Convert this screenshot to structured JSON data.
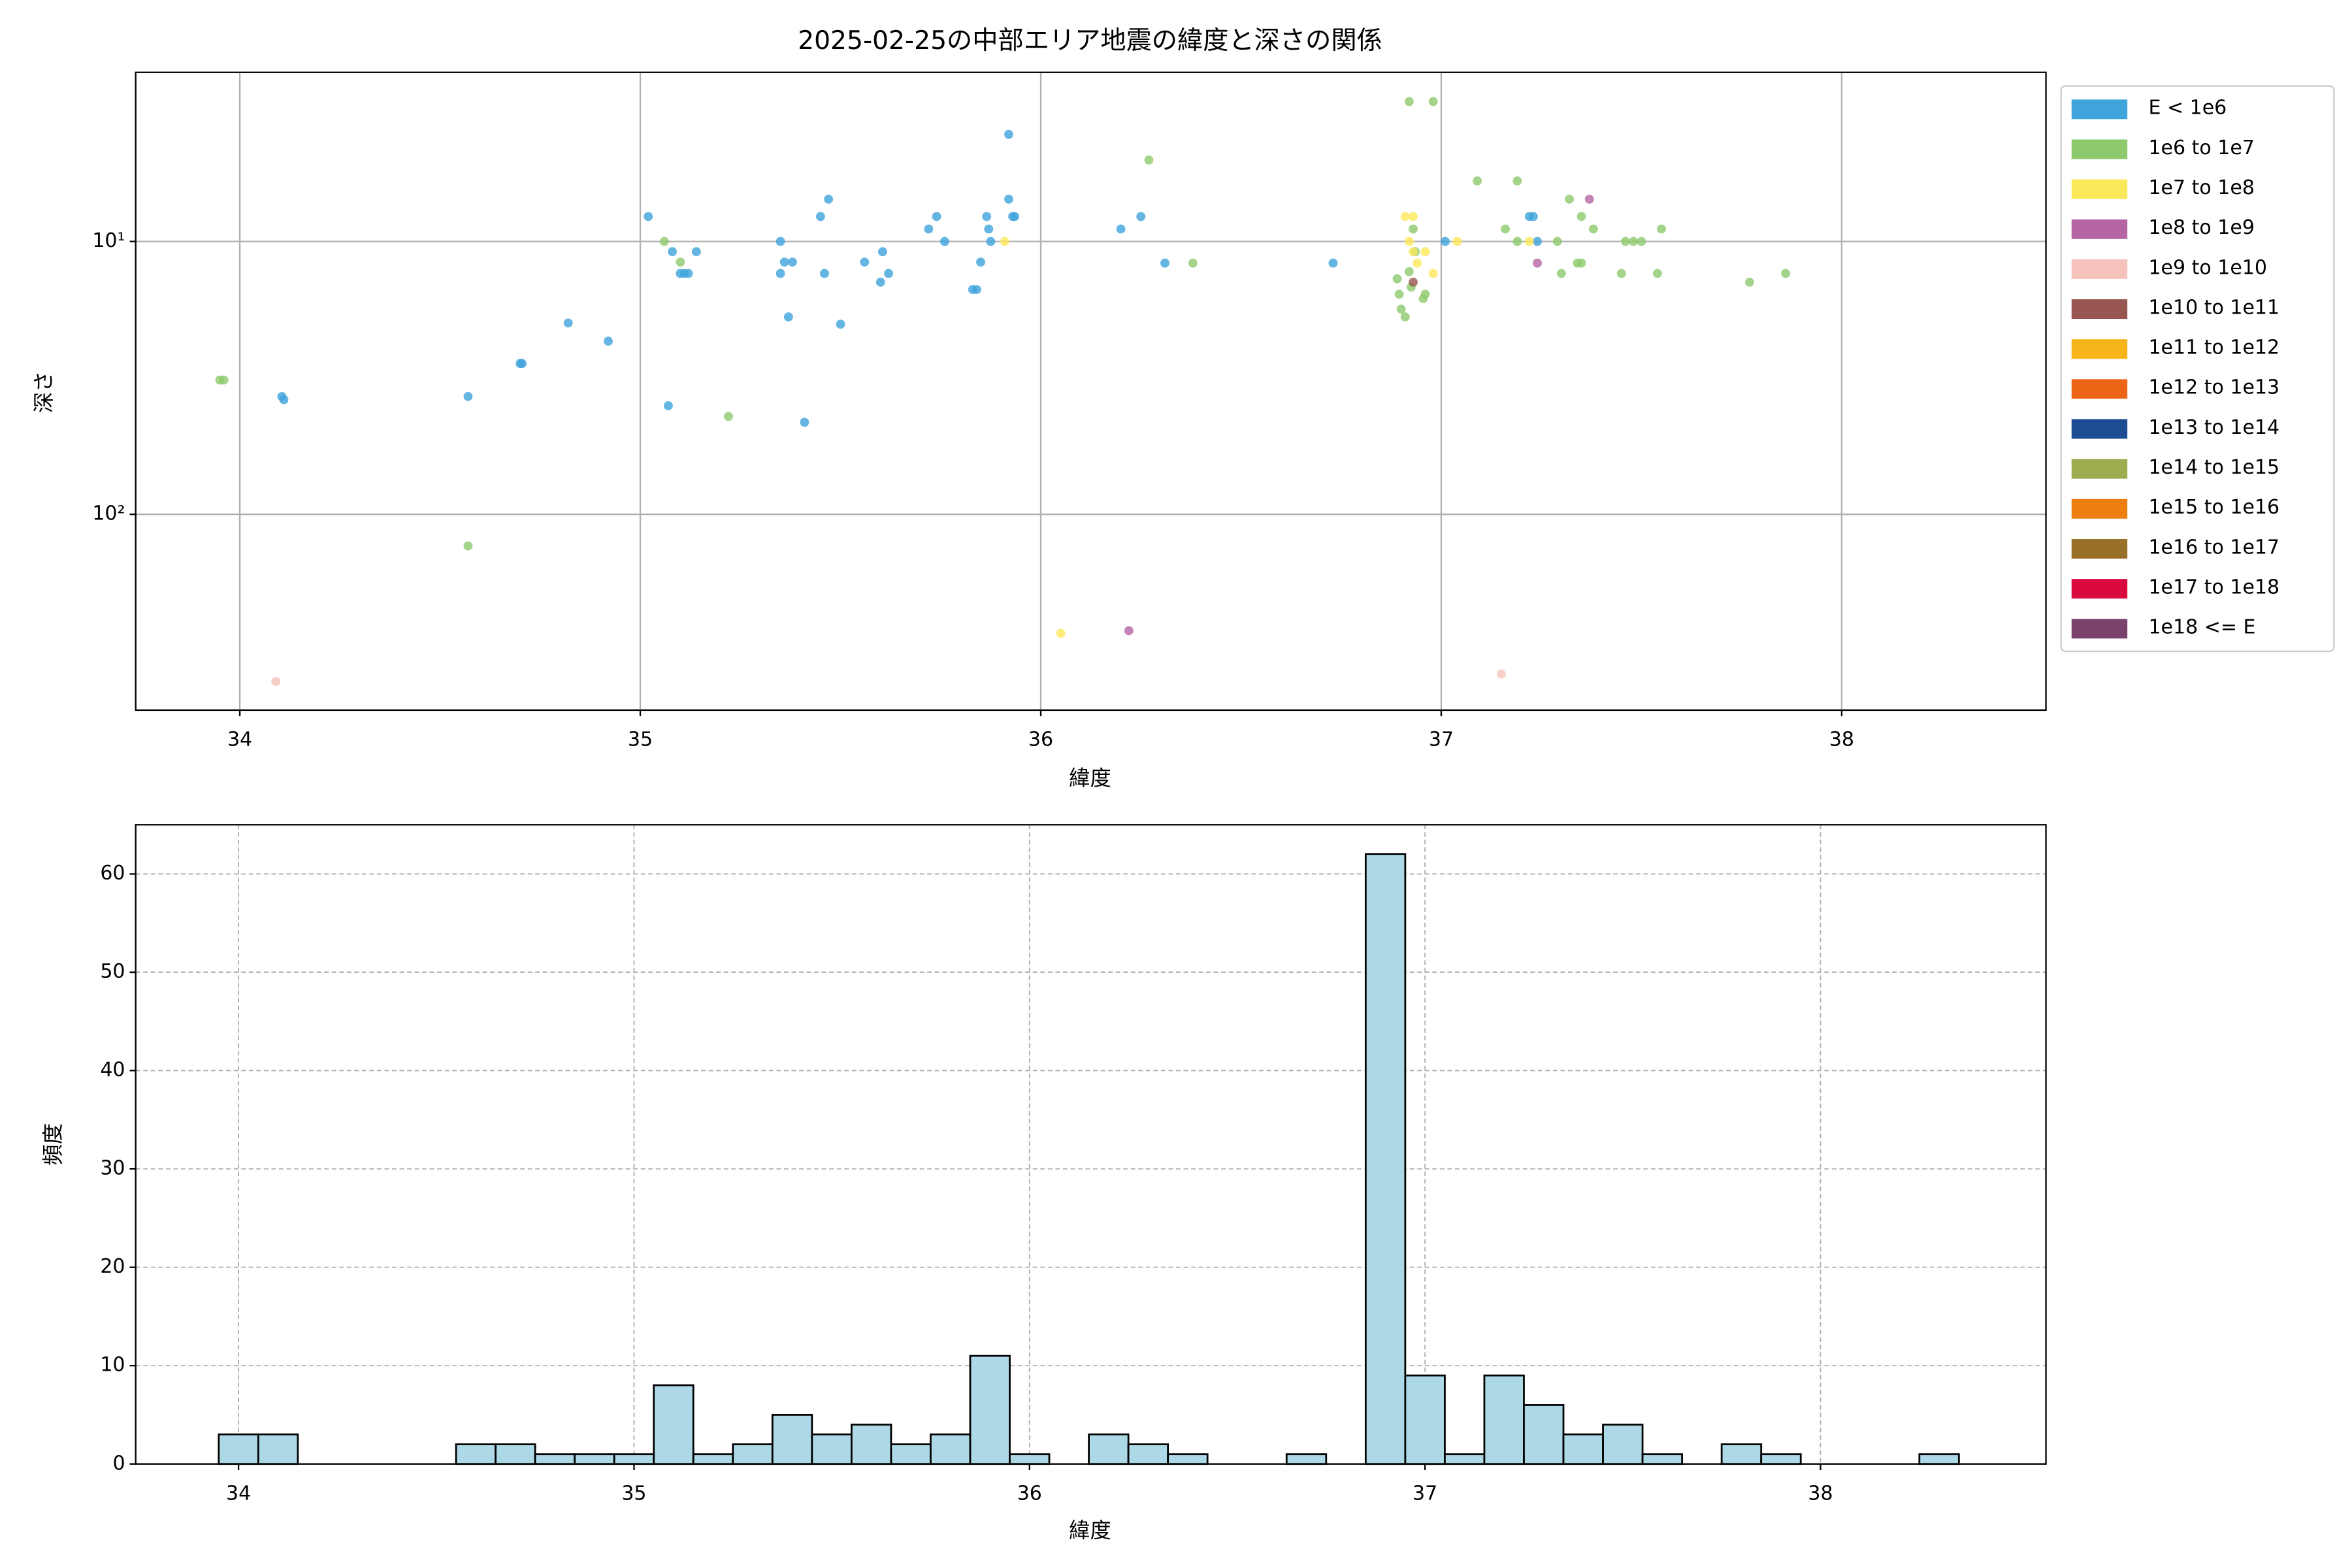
{
  "chart_data": [
    {
      "type": "scatter",
      "title": "2025-02-25の中部エリア地震の緯度と深さの関係",
      "x_label": "緯度",
      "y_label": "深さ",
      "xlim": [
        33.74,
        38.51
      ],
      "xticks": [
        34,
        35,
        36,
        37,
        38
      ],
      "ylim": [
        2.4,
        522
      ],
      "yscale": "log",
      "invert_y": true,
      "yticks": [
        {
          "value": 10,
          "label": "10¹"
        },
        {
          "value": 100,
          "label": "10²"
        }
      ],
      "grid": true,
      "legend": "outside right",
      "series": [
        {
          "name": "E < 1e6",
          "color": "#3fa3dc",
          "x": [
            34.105,
            34.11,
            34.57,
            34.7,
            34.705,
            34.82,
            34.92,
            35.02,
            35.07,
            35.08,
            35.1,
            35.11,
            35.12,
            35.14,
            35.35,
            35.35,
            35.36,
            35.38,
            35.37,
            35.41,
            35.45,
            35.47,
            35.46,
            35.5,
            35.56,
            35.6,
            35.605,
            35.62,
            35.72,
            35.74,
            35.76,
            35.83,
            35.84,
            35.85,
            35.865,
            35.87,
            35.875,
            35.92,
            35.92,
            35.93,
            35.935,
            36.2,
            36.25,
            36.31,
            36.73,
            37.01,
            37.22,
            37.23,
            37.24
          ],
          "values": [
            37,
            38,
            37,
            28,
            28,
            19.9,
            23.2,
            8.1,
            40,
            10.9,
            13.1,
            13.1,
            13.1,
            10.9,
            10,
            13.1,
            11.9,
            11.9,
            18.9,
            46,
            8.1,
            7,
            13.1,
            20.1,
            11.9,
            14.1,
            10.9,
            13.1,
            9,
            8.1,
            10,
            15,
            15,
            11.9,
            8.1,
            9,
            10,
            7,
            4.05,
            8.1,
            8.1,
            9,
            8.1,
            12,
            12,
            10,
            8.1,
            8.1,
            10
          ]
        },
        {
          "name": "1e6 to 1e7",
          "color": "#8dc96d",
          "x": [
            33.95,
            33.96,
            35.06,
            35.1,
            35.22,
            34.57,
            36.27,
            36.38,
            36.92,
            36.98,
            36.89,
            36.895,
            36.9,
            36.91,
            36.92,
            36.925,
            36.935,
            36.955,
            36.96,
            36.93,
            37.09,
            37.19,
            37.16,
            37.19,
            37.32,
            37.35,
            37.38,
            37.29,
            37.3,
            37.34,
            37.35,
            37.45,
            37.46,
            37.48,
            37.5,
            37.55,
            37.54,
            37.77,
            37.86
          ],
          "values": [
            32.2,
            32.2,
            10,
            11.9,
            43.8,
            130.6,
            5.03,
            12,
            3.07,
            3.07,
            13.7,
            15.6,
            17.7,
            18.9,
            12.9,
            14.7,
            10.9,
            16.2,
            15.6,
            9,
            6,
            6,
            9,
            10,
            7,
            8.1,
            9,
            10,
            13.1,
            12,
            12,
            13.1,
            10,
            10,
            10,
            9,
            13.1,
            14.1,
            13.1
          ]
        },
        {
          "name": "1e7 to 1e8",
          "color": "#fbe85a",
          "x": [
            35.91,
            36.05,
            36.91,
            36.93,
            36.92,
            36.93,
            36.94,
            36.98,
            36.96,
            37.04,
            37.22
          ],
          "values": [
            10,
            273,
            8.1,
            8.1,
            10,
            10.9,
            12,
            13.1,
            10.9,
            10,
            10
          ]
        },
        {
          "name": "1e8 to 1e9",
          "color": "#b565a4",
          "x": [
            36.22,
            37.37,
            37.24
          ],
          "values": [
            267,
            7,
            12
          ]
        },
        {
          "name": "1e9 to 1e10",
          "color": "#f6c2bb",
          "x": [
            34.09,
            37.15
          ],
          "values": [
            410,
            385
          ]
        },
        {
          "name": "1e10 to 1e11",
          "color": "#985650",
          "x": [
            36.93
          ],
          "values": [
            14.1
          ]
        },
        {
          "name": "1e11 to 1e12",
          "color": "#f7b41b",
          "x": [],
          "values": []
        },
        {
          "name": "1e12 to 1e13",
          "color": "#ec6415",
          "x": [],
          "values": []
        },
        {
          "name": "1e13 to 1e14",
          "color": "#1d4c92",
          "x": [],
          "values": []
        },
        {
          "name": "1e14 to 1e15",
          "color": "#9bad4e",
          "x": [],
          "values": []
        },
        {
          "name": "1e15 to 1e16",
          "color": "#ee7d12",
          "x": [],
          "values": []
        },
        {
          "name": "1e16 to 1e17",
          "color": "#98702a",
          "x": [],
          "values": []
        },
        {
          "name": "1e17 to 1e18",
          "color": "#da0a3f",
          "x": [],
          "values": []
        },
        {
          "name": "1e18 <= E",
          "color": "#79426c",
          "x": [],
          "values": []
        }
      ]
    },
    {
      "type": "histogram",
      "x_label": "緯度",
      "y_label": "頻度",
      "color": "#add8e6",
      "bins": [
        33.95,
        34.05,
        34.15,
        34.25,
        34.35,
        34.45,
        34.55,
        34.65,
        34.75,
        34.85,
        34.95,
        35.05,
        35.15,
        35.25,
        35.35,
        35.45,
        35.55,
        35.65,
        35.75,
        35.85,
        35.95,
        36.05,
        36.15,
        36.25,
        36.35,
        36.45,
        36.55,
        36.65,
        36.75,
        36.85,
        36.95,
        37.05,
        37.15,
        37.25,
        37.35,
        37.45,
        37.55,
        37.65,
        37.75,
        37.85,
        37.95,
        38.05,
        38.15,
        38.25,
        38.35
      ],
      "counts": [
        3,
        3,
        0,
        0,
        0,
        0,
        2,
        2,
        1,
        1,
        1,
        8,
        1,
        2,
        5,
        3,
        4,
        2,
        3,
        11,
        1,
        0,
        3,
        2,
        1,
        0,
        0,
        1,
        0,
        62,
        9,
        1,
        9,
        6,
        3,
        4,
        1,
        0,
        2,
        1,
        0,
        0,
        0,
        1
      ],
      "xlim": [
        33.74,
        38.57
      ],
      "xticks": [
        34,
        35,
        36,
        37,
        38
      ],
      "ylim": [
        0,
        65
      ],
      "yticks": [
        0,
        10,
        20,
        30,
        40,
        50,
        60
      ],
      "grid": true
    }
  ]
}
